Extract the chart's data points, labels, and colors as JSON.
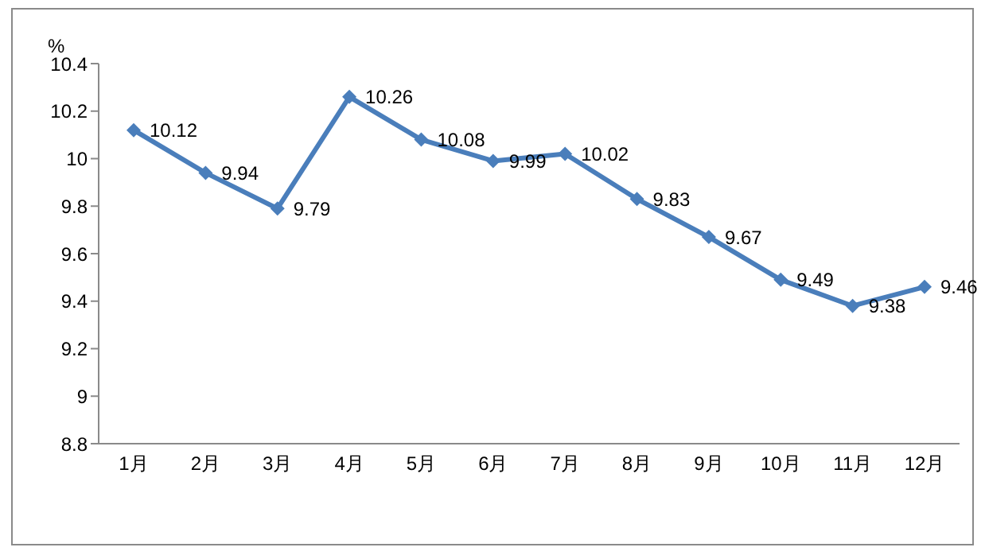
{
  "chart_data": {
    "type": "line",
    "ylabel": "%",
    "categories": [
      "1月",
      "2月",
      "3月",
      "4月",
      "5月",
      "6月",
      "7月",
      "8月",
      "9月",
      "10月",
      "11月",
      "12月"
    ],
    "series": [
      {
        "color": "#4a7ebb",
        "values": [
          10.12,
          9.94,
          9.79,
          10.26,
          10.08,
          9.99,
          10.02,
          9.83,
          9.67,
          9.49,
          9.38,
          9.46
        ]
      }
    ],
    "ylim": [
      8.8,
      10.4
    ],
    "yticks": [
      8.8,
      9,
      9.2,
      9.4,
      9.6,
      9.8,
      10,
      10.2,
      10.4
    ],
    "marker": "diamond",
    "data_labels": true,
    "grid": false,
    "legend": false
  }
}
